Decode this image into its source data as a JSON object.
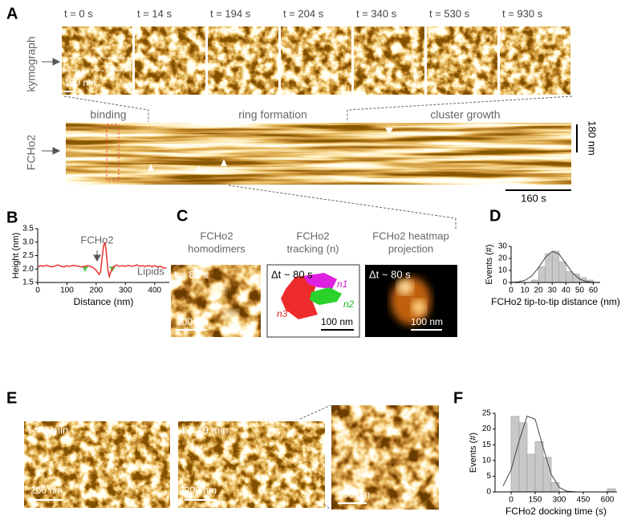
{
  "panel_labels": [
    "A",
    "B",
    "C",
    "D",
    "E",
    "F"
  ],
  "panel_a": {
    "frame_times": [
      "t = 0 s",
      "t = 14 s",
      "t = 194 s",
      "t = 204 s",
      "t = 340 s",
      "t = 530 s",
      "t = 930 s"
    ],
    "row_labels": [
      "kymograph",
      "FCHo2"
    ],
    "scale_bar": "150 nm",
    "phases": [
      "binding",
      "ring formation",
      "cluster growth"
    ],
    "kymo_scale_y": "180 nm",
    "kymo_scale_x": "160 s"
  },
  "panel_c": {
    "columns": [
      {
        "title": [
          "FCHo2",
          "homodimers"
        ],
        "time": "t = 88 s",
        "scale_bar": "100 nm"
      },
      {
        "title": [
          "FCHo2",
          "tracking (n)"
        ],
        "time": "Δt ~ 80 s",
        "scale_bar": "100 nm",
        "tracks": [
          "n1",
          "n2",
          "n3"
        ]
      },
      {
        "title": [
          "FCHo2 heatmap",
          "projection"
        ],
        "time": "Δt ~ 80 s",
        "scale_bar": "100 nm"
      }
    ]
  },
  "panel_e": {
    "images": [
      {
        "time": "t = 0 min",
        "scale_bar": "200 nm"
      },
      {
        "time": "t = 19 min",
        "scale_bar": "200 nm"
      },
      {
        "scale_bar": "100 nm"
      }
    ]
  },
  "chart_data": [
    {
      "type": "line",
      "x_label": "Distance (nm)",
      "y_label": "Height (nm)",
      "annotations": [
        "FCHo2",
        "Lipids"
      ],
      "color": "#e8312f",
      "x": [
        0,
        10,
        20,
        30,
        40,
        50,
        60,
        70,
        80,
        90,
        100,
        110,
        120,
        130,
        140,
        150,
        160,
        170,
        180,
        190,
        200,
        210,
        215,
        220,
        225,
        230,
        235,
        240,
        245,
        250,
        260,
        270,
        280,
        290,
        300,
        310,
        320,
        330,
        340,
        350,
        360,
        370,
        380,
        390,
        400,
        410,
        420,
        430,
        440
      ],
      "values": [
        2.08,
        2.12,
        2.1,
        2.14,
        2.1,
        2.08,
        2.12,
        2.15,
        2.1,
        2.08,
        2.12,
        2.1,
        2.14,
        2.12,
        2.1,
        2.08,
        2.1,
        2.12,
        2.1,
        2.05,
        1.95,
        1.8,
        1.9,
        2.4,
        2.85,
        3.0,
        2.6,
        1.95,
        1.72,
        1.9,
        2.1,
        2.15,
        2.1,
        2.12,
        2.1,
        2.14,
        2.1,
        2.12,
        2.15,
        2.1,
        2.12,
        2.1,
        2.13,
        2.1,
        2.12,
        2.08,
        2.1,
        2.05,
        2.03
      ],
      "xlim": [
        0,
        450
      ],
      "ylim": [
        1.5,
        3.5
      ],
      "xticks": [
        0,
        100,
        200,
        300,
        400
      ],
      "yticks": [
        1.5,
        {
          "value": 2,
          "label": "2.0"
        },
        2.5,
        {
          "value": 3,
          "label": "3.0"
        },
        3.5
      ]
    },
    {
      "type": "histogram",
      "x_label": "FCHo2 tip-to-tip distance (nm)",
      "y_label": "Events (#)",
      "color": "#c8c8c8",
      "bins": [
        15,
        20,
        25,
        30,
        35,
        40,
        45,
        50,
        55,
        60
      ],
      "values": [
        2,
        13,
        24,
        26,
        17,
        9,
        7,
        4,
        2
      ],
      "fit": {
        "color": "#444444",
        "x": [
          0,
          5,
          10,
          15,
          20,
          25,
          30,
          35,
          40,
          45,
          50,
          55,
          60,
          65
        ],
        "values": [
          0.07,
          0.4,
          1.71,
          5.3,
          12.3,
          20.8,
          25.8,
          23.6,
          15.8,
          7.7,
          2.8,
          0.74,
          0.14,
          0.02
        ]
      },
      "xlim": [
        0,
        65
      ],
      "ylim": [
        0,
        30
      ],
      "xticks": [
        0,
        10,
        20,
        30,
        40,
        50,
        60
      ],
      "yticks": [
        0,
        10,
        20,
        30
      ]
    },
    {
      "type": "histogram",
      "x_label": "FCHo2 docking time (s)",
      "y_label": "Events (#)",
      "color": "#c8c8c8",
      "bins": [
        0,
        50,
        100,
        150,
        200,
        250,
        300,
        350,
        400,
        450,
        500,
        550,
        600,
        650
      ],
      "values": [
        24,
        22,
        12,
        16,
        11,
        3,
        0,
        0,
        0,
        0,
        0,
        0,
        1
      ],
      "fit": {
        "color": "#444444",
        "x": [
          -50,
          0,
          50,
          100,
          150,
          200,
          250,
          300,
          350,
          400,
          450,
          500,
          550,
          600,
          650
        ],
        "values": [
          1.9,
          7.0,
          16.2,
          24.1,
          23.1,
          14.1,
          5.6,
          1.4,
          0.2,
          0.02,
          0,
          0,
          0,
          0,
          0
        ]
      },
      "xlim": [
        -100,
        660
      ],
      "ylim": [
        0,
        25
      ],
      "xticks": [
        0,
        150,
        300,
        450,
        600
      ],
      "yticks": [
        0,
        5,
        10,
        15,
        20,
        25
      ]
    }
  ]
}
